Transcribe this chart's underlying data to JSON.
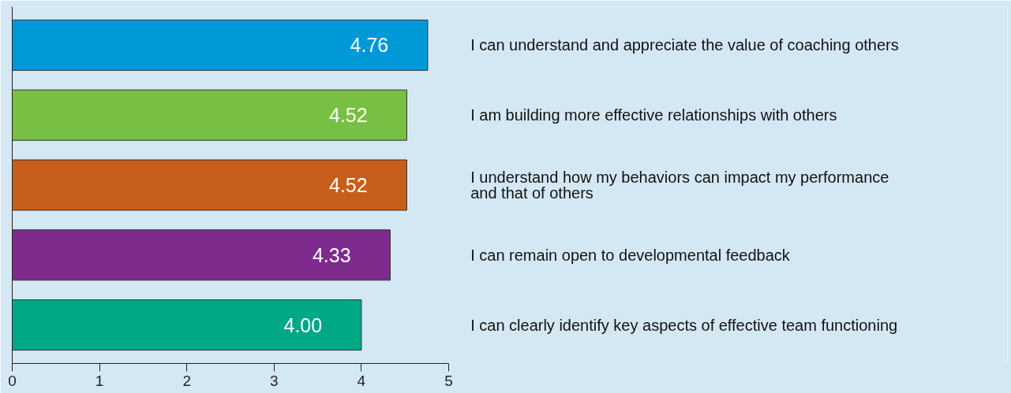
{
  "chart_data": {
    "type": "bar",
    "orientation": "horizontal",
    "categories": [
      "I can understand and appreciate the value of coaching others",
      "I am building more effective relationships with others",
      "I understand how my behaviors can impact my performance\nand that of others",
      "I can remain open to developmental feedback",
      "I can clearly identify key aspects of effective team functioning"
    ],
    "values": [
      4.76,
      4.52,
      4.52,
      4.33,
      4.0
    ],
    "value_labels": [
      "4.76",
      "4.52",
      "4.52",
      "4.33",
      "4.00"
    ],
    "colors": [
      "#0099d8",
      "#77c043",
      "#c85e1b",
      "#7f2b8d",
      "#00a886"
    ],
    "xlim": [
      0,
      5
    ],
    "xticks": [
      0,
      1,
      2,
      3,
      4,
      5
    ],
    "tick_labels": "x",
    "grid": false
  }
}
